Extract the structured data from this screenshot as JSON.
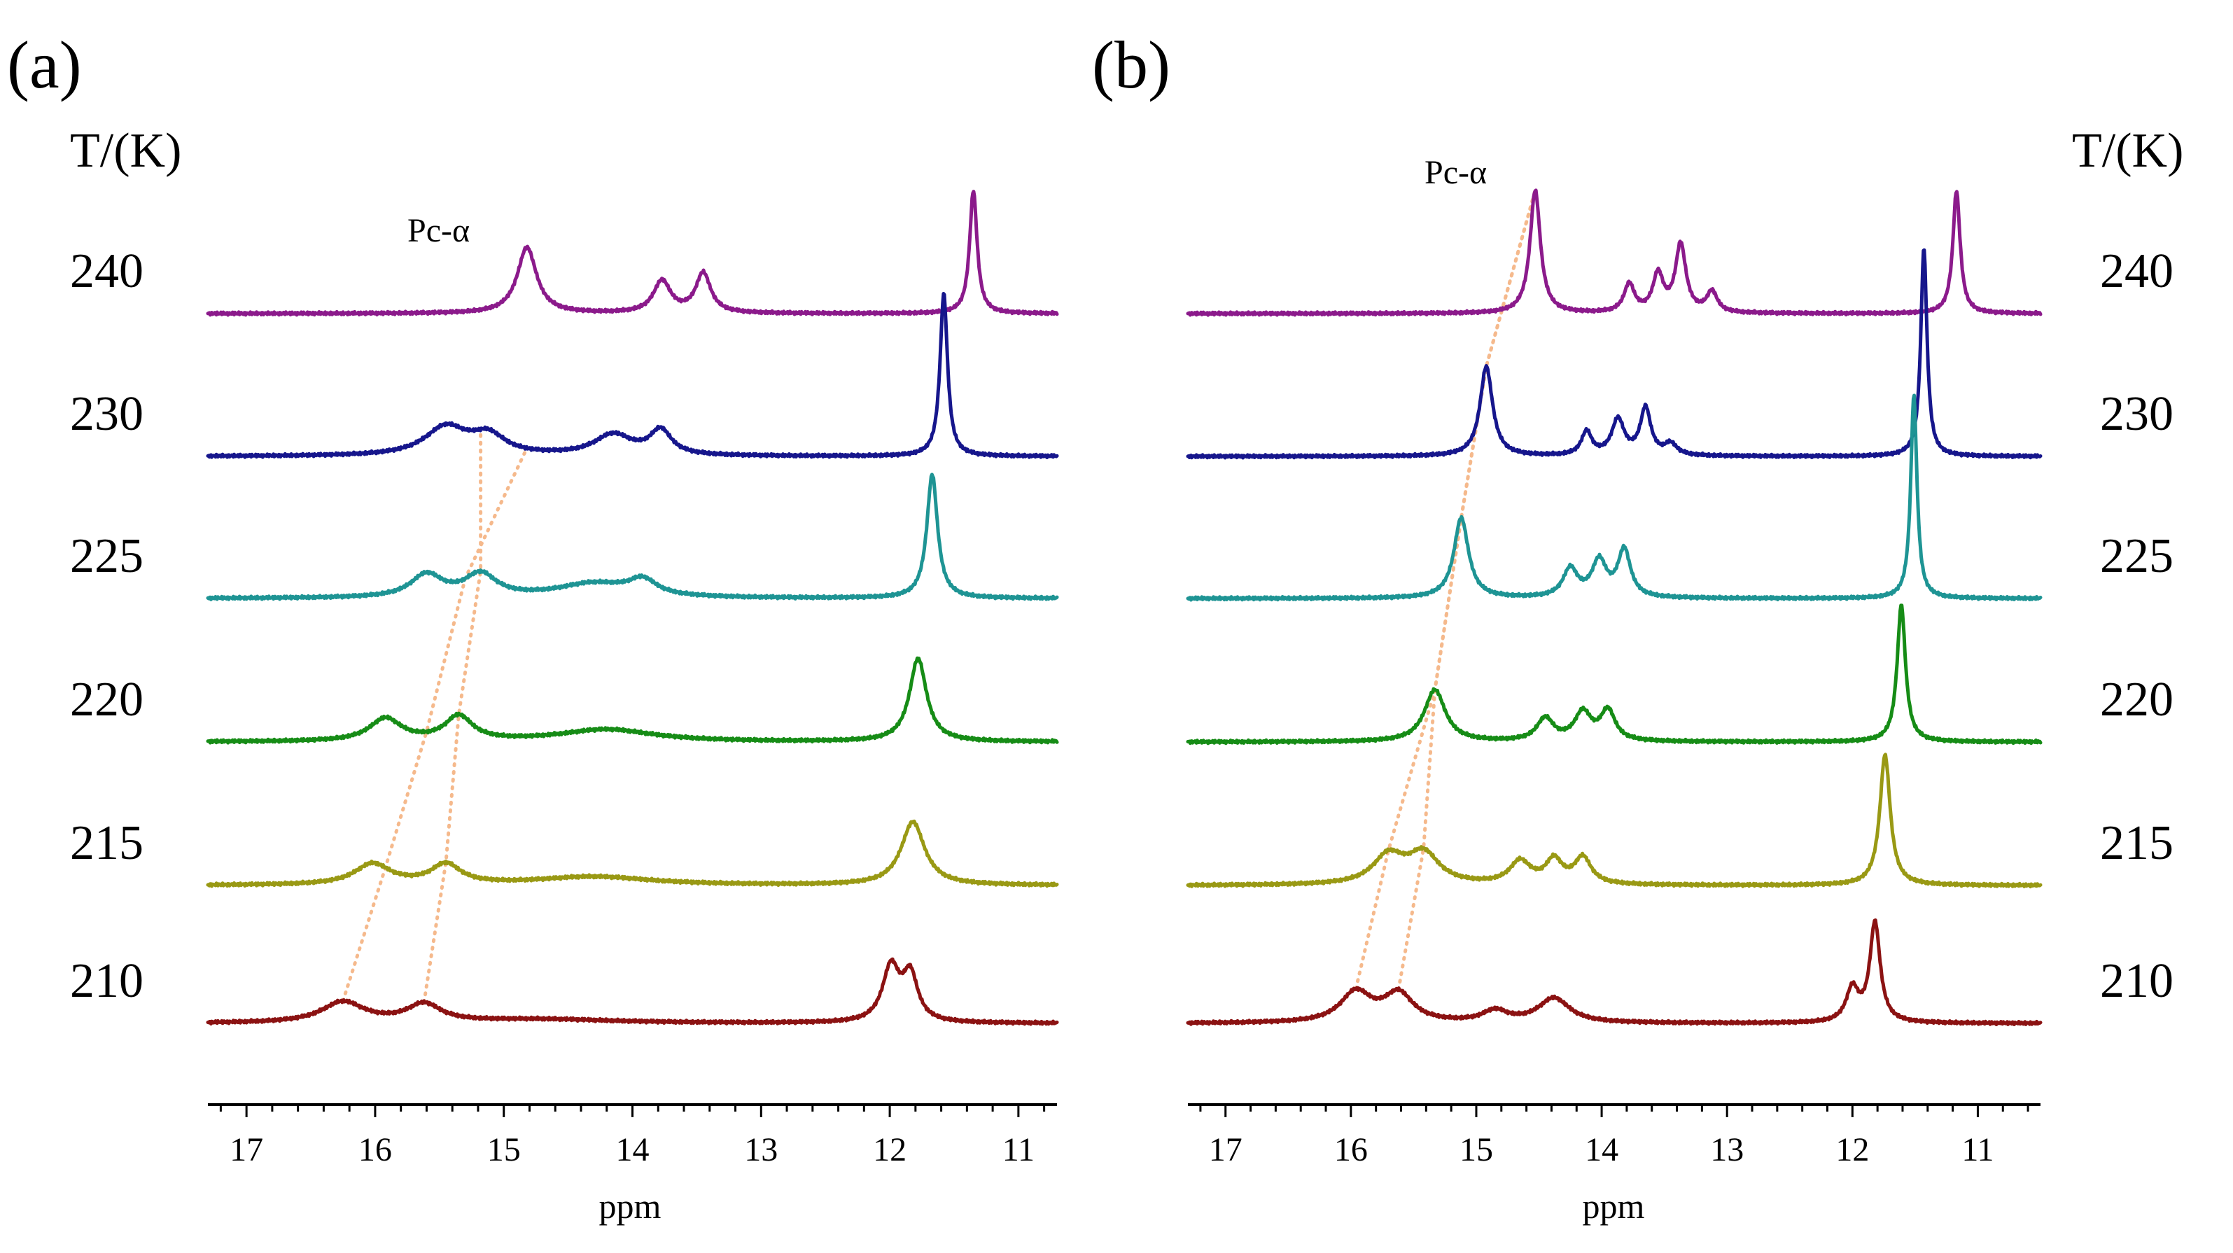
{
  "figure": {
    "temperature_header": "T/(K)",
    "annotation": "Pc-α",
    "colors": {
      "240": "#8b1a8b",
      "230": "#16168c",
      "225": "#1e9494",
      "220": "#168c16",
      "215": "#999914",
      "210": "#8b1212",
      "guide": "#f5b98c"
    }
  },
  "chart_data": [
    {
      "type": "line",
      "panel": "(a)",
      "xlabel": "ppm",
      "xlim": [
        17.3,
        10.7
      ],
      "xticks": [
        17,
        16,
        15,
        14,
        13,
        12,
        11
      ],
      "temperatures": [
        "240",
        "230",
        "225",
        "220",
        "215",
        "210"
      ],
      "series": [
        {
          "name": "240",
          "peaks": [
            {
              "ppm": 14.82,
              "height": 0.7,
              "width": 0.09
            },
            {
              "ppm": 13.77,
              "height": 0.34,
              "width": 0.08
            },
            {
              "ppm": 13.45,
              "height": 0.42,
              "width": 0.07
            },
            {
              "ppm": 11.35,
              "height": 1.3,
              "width": 0.035
            }
          ]
        },
        {
          "name": "230",
          "peaks": [
            {
              "ppm": 15.45,
              "height": 0.3,
              "width": 0.2
            },
            {
              "ppm": 15.12,
              "height": 0.2,
              "width": 0.16
            },
            {
              "ppm": 14.15,
              "height": 0.22,
              "width": 0.18
            },
            {
              "ppm": 13.78,
              "height": 0.26,
              "width": 0.1
            },
            {
              "ppm": 11.58,
              "height": 1.72,
              "width": 0.035
            }
          ]
        },
        {
          "name": "225",
          "peaks": [
            {
              "ppm": 15.6,
              "height": 0.24,
              "width": 0.15
            },
            {
              "ppm": 15.18,
              "height": 0.24,
              "width": 0.15
            },
            {
              "ppm": 14.3,
              "height": 0.15,
              "width": 0.35
            },
            {
              "ppm": 13.92,
              "height": 0.16,
              "width": 0.13
            },
            {
              "ppm": 11.67,
              "height": 1.31,
              "width": 0.05
            }
          ]
        },
        {
          "name": "220",
          "peaks": [
            {
              "ppm": 15.92,
              "height": 0.24,
              "width": 0.15
            },
            {
              "ppm": 15.35,
              "height": 0.26,
              "width": 0.13
            },
            {
              "ppm": 14.2,
              "height": 0.13,
              "width": 0.45
            },
            {
              "ppm": 11.78,
              "height": 0.88,
              "width": 0.08
            }
          ]
        },
        {
          "name": "215",
          "peaks": [
            {
              "ppm": 16.02,
              "height": 0.22,
              "width": 0.17
            },
            {
              "ppm": 15.45,
              "height": 0.21,
              "width": 0.14
            },
            {
              "ppm": 14.3,
              "height": 0.09,
              "width": 0.55
            },
            {
              "ppm": 11.82,
              "height": 0.67,
              "width": 0.11
            }
          ]
        },
        {
          "name": "210",
          "peaks": [
            {
              "ppm": 16.25,
              "height": 0.22,
              "width": 0.2
            },
            {
              "ppm": 15.62,
              "height": 0.19,
              "width": 0.16
            },
            {
              "ppm": 14.7,
              "height": 0.04,
              "width": 0.7
            },
            {
              "ppm": 11.99,
              "height": 0.58,
              "width": 0.08
            },
            {
              "ppm": 11.84,
              "height": 0.48,
              "width": 0.07
            }
          ]
        }
      ],
      "pc_alpha_guides": [
        [
          16.25,
          15.92,
          15.6,
          15.3,
          14.82
        ],
        [
          15.62,
          15.45,
          15.35,
          15.18,
          15.18
        ]
      ]
    },
    {
      "type": "line",
      "panel": "(b)",
      "xlabel": "ppm",
      "xlim": [
        17.3,
        10.5
      ],
      "xticks": [
        17,
        16,
        15,
        14,
        13,
        12,
        11
      ],
      "temperatures": [
        "240",
        "230",
        "225",
        "220",
        "215",
        "210"
      ],
      "series": [
        {
          "name": "240",
          "peaks": [
            {
              "ppm": 14.53,
              "height": 1.3,
              "width": 0.05
            },
            {
              "ppm": 13.78,
              "height": 0.3,
              "width": 0.05
            },
            {
              "ppm": 13.55,
              "height": 0.4,
              "width": 0.05
            },
            {
              "ppm": 13.37,
              "height": 0.72,
              "width": 0.05
            },
            {
              "ppm": 13.12,
              "height": 0.22,
              "width": 0.05
            },
            {
              "ppm": 11.17,
              "height": 1.3,
              "width": 0.035
            }
          ]
        },
        {
          "name": "230",
          "peaks": [
            {
              "ppm": 14.92,
              "height": 0.95,
              "width": 0.06
            },
            {
              "ppm": 14.12,
              "height": 0.25,
              "width": 0.05
            },
            {
              "ppm": 13.87,
              "height": 0.38,
              "width": 0.06
            },
            {
              "ppm": 13.65,
              "height": 0.5,
              "width": 0.05
            },
            {
              "ppm": 13.45,
              "height": 0.12,
              "width": 0.06
            },
            {
              "ppm": 11.43,
              "height": 2.2,
              "width": 0.03
            }
          ]
        },
        {
          "name": "225",
          "peaks": [
            {
              "ppm": 15.12,
              "height": 0.85,
              "width": 0.07
            },
            {
              "ppm": 14.25,
              "height": 0.3,
              "width": 0.07
            },
            {
              "ppm": 14.02,
              "height": 0.38,
              "width": 0.07
            },
            {
              "ppm": 13.82,
              "height": 0.5,
              "width": 0.06
            },
            {
              "ppm": 11.51,
              "height": 2.15,
              "width": 0.03
            }
          ]
        },
        {
          "name": "220",
          "peaks": [
            {
              "ppm": 15.33,
              "height": 0.55,
              "width": 0.1
            },
            {
              "ppm": 14.45,
              "height": 0.24,
              "width": 0.08
            },
            {
              "ppm": 14.15,
              "height": 0.3,
              "width": 0.08
            },
            {
              "ppm": 13.95,
              "height": 0.32,
              "width": 0.07
            },
            {
              "ppm": 11.61,
              "height": 1.45,
              "width": 0.04
            }
          ]
        },
        {
          "name": "215",
          "peaks": [
            {
              "ppm": 15.7,
              "height": 0.3,
              "width": 0.15
            },
            {
              "ppm": 15.42,
              "height": 0.32,
              "width": 0.15
            },
            {
              "ppm": 14.65,
              "height": 0.24,
              "width": 0.1
            },
            {
              "ppm": 14.38,
              "height": 0.25,
              "width": 0.08
            },
            {
              "ppm": 14.15,
              "height": 0.28,
              "width": 0.08
            },
            {
              "ppm": 11.74,
              "height": 1.38,
              "width": 0.05
            }
          ]
        },
        {
          "name": "210",
          "peaks": [
            {
              "ppm": 15.96,
              "height": 0.32,
              "width": 0.15
            },
            {
              "ppm": 15.62,
              "height": 0.3,
              "width": 0.14
            },
            {
              "ppm": 14.85,
              "height": 0.12,
              "width": 0.12
            },
            {
              "ppm": 14.38,
              "height": 0.26,
              "width": 0.15
            },
            {
              "ppm": 12.0,
              "height": 0.35,
              "width": 0.06
            },
            {
              "ppm": 11.82,
              "height": 1.05,
              "width": 0.05
            }
          ]
        }
      ],
      "pc_alpha_guides": [
        [
          15.96,
          15.7,
          15.33,
          15.12,
          14.92,
          14.53
        ],
        [
          15.62,
          15.42,
          15.33,
          15.12,
          14.92,
          14.53
        ]
      ]
    }
  ]
}
